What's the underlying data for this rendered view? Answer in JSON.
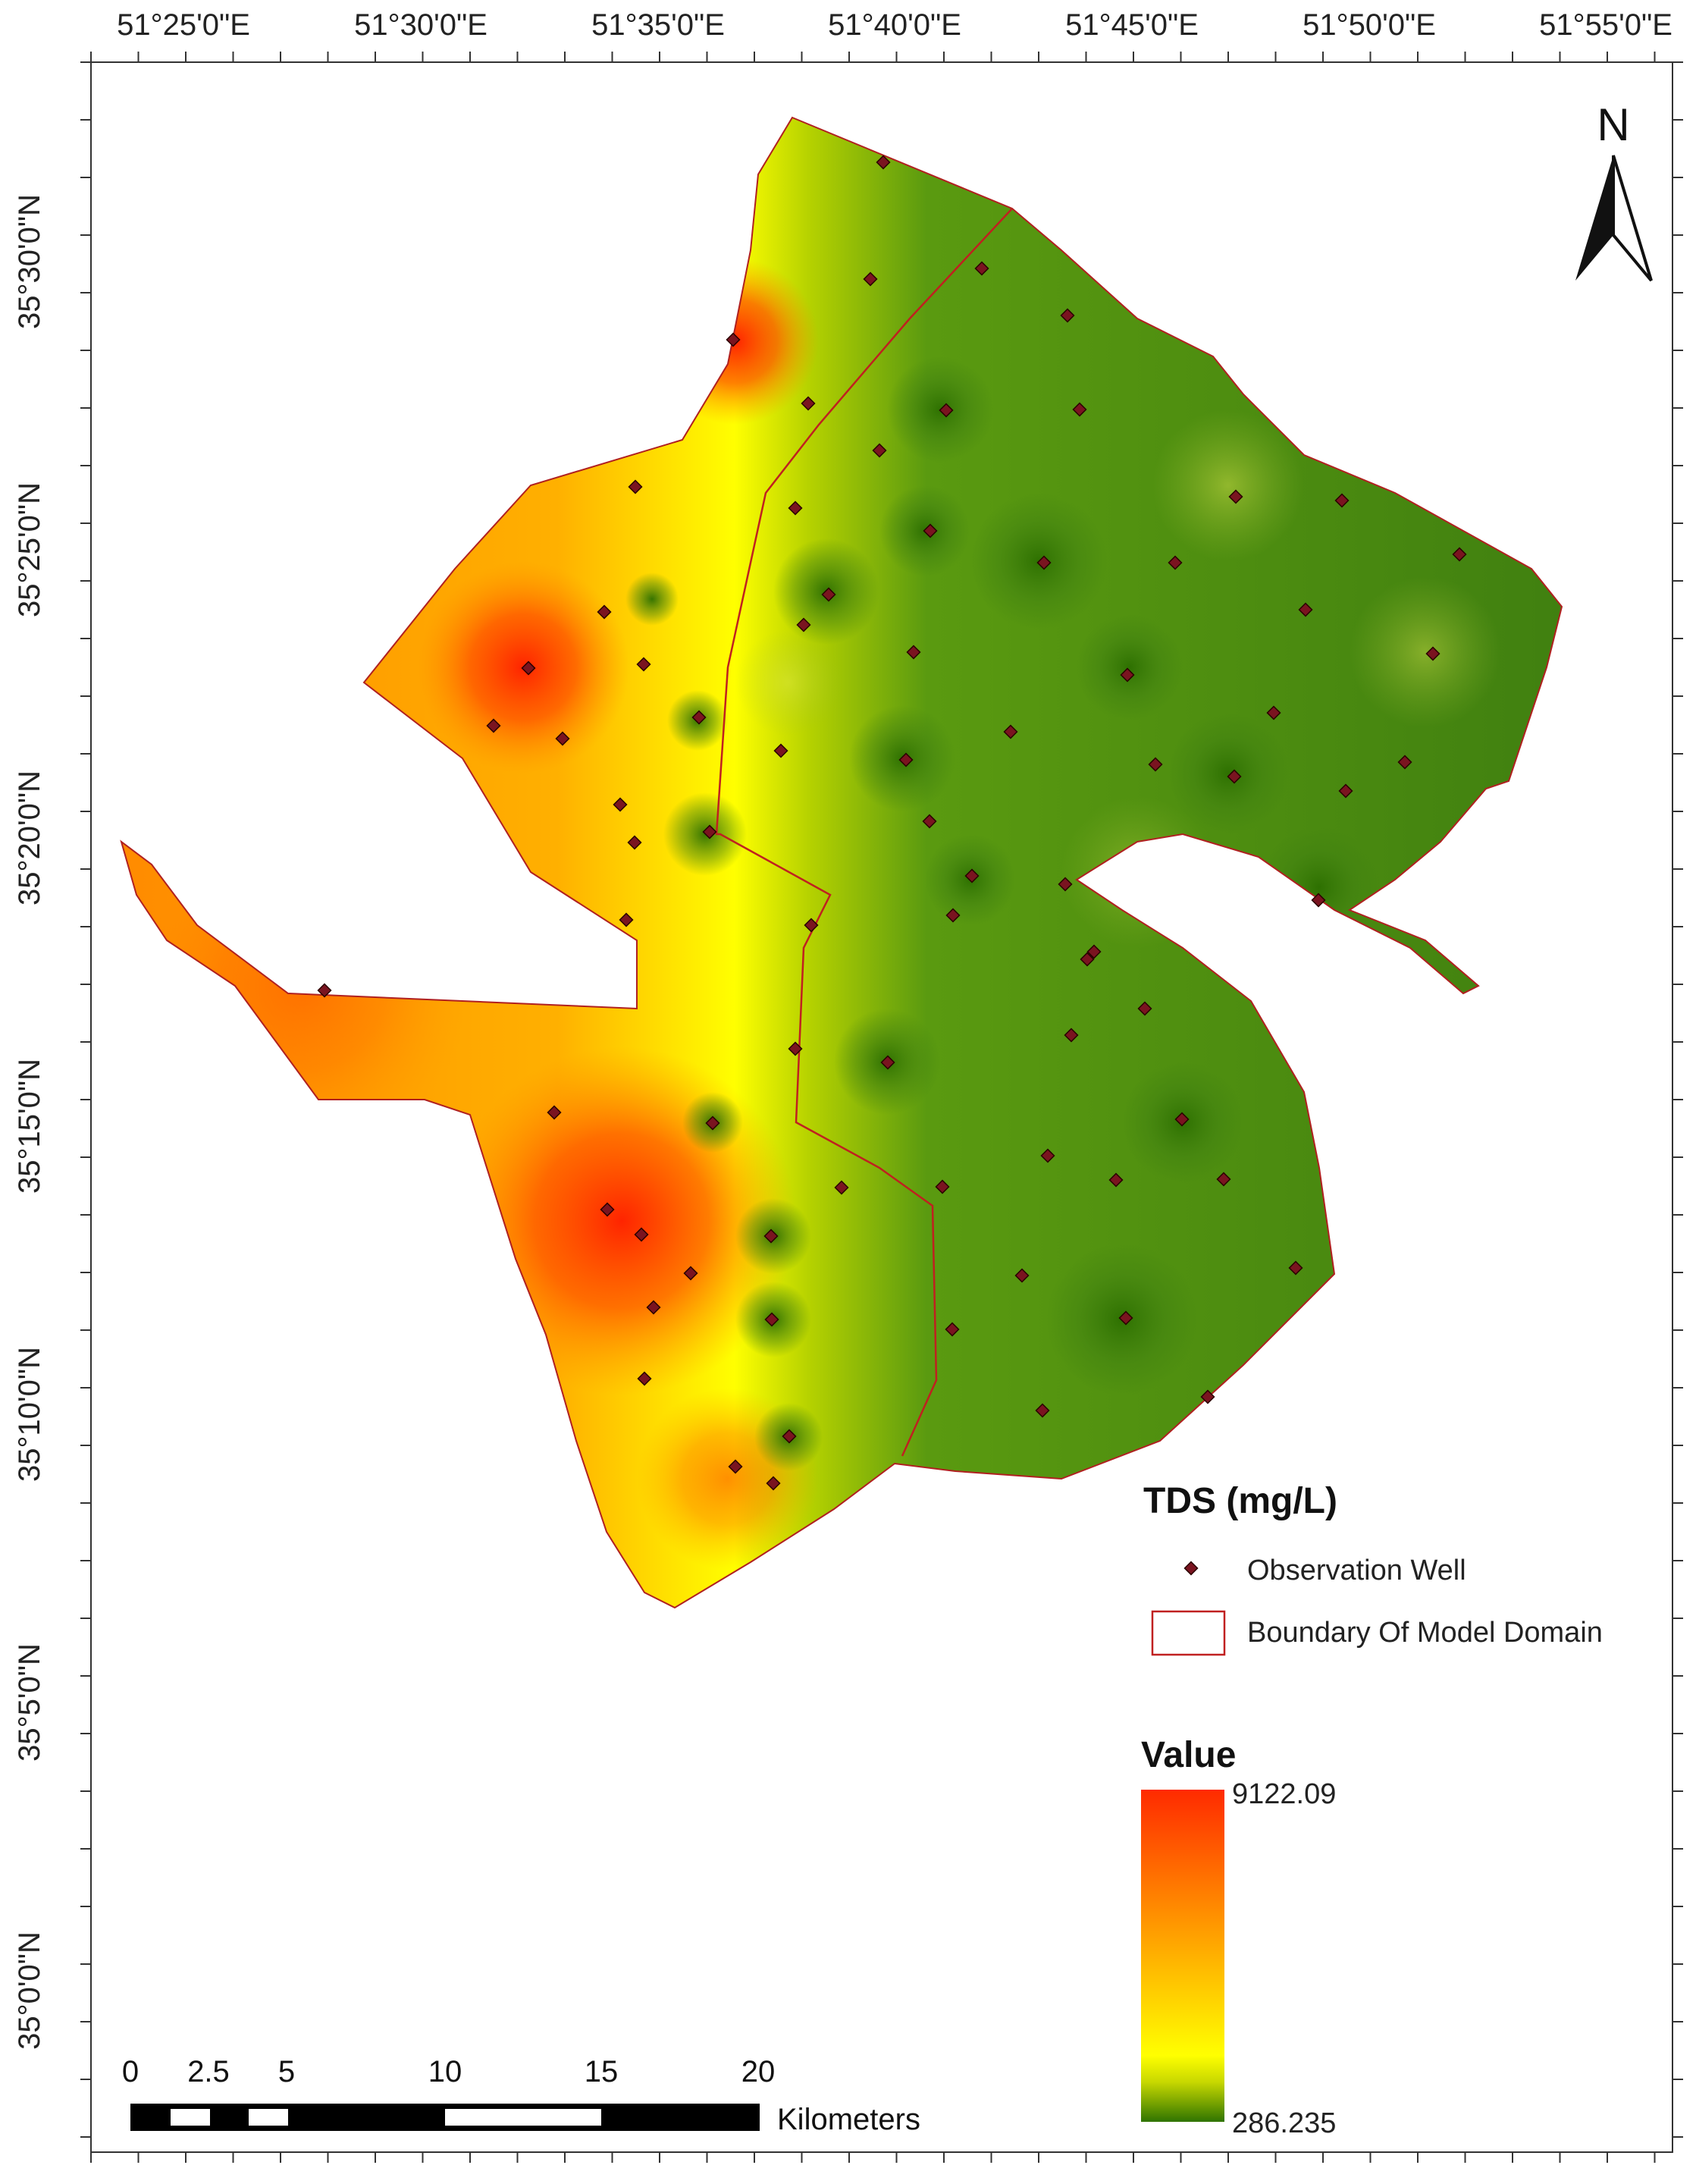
{
  "axes": {
    "top_labels": [
      "51°25'0\"E",
      "51°30'0\"E",
      "51°35'0\"E",
      "51°40'0\"E",
      "51°45'0\"E",
      "51°50'0\"E",
      "51°55'0\"E"
    ],
    "left_labels": [
      "35°30'0\"N",
      "35°25'0\"N",
      "35°20'0\"N",
      "35°15'0\"N",
      "35°10'0\"N",
      "35°5'0\"N",
      "35°0'0\"N"
    ]
  },
  "legend": {
    "title": "TDS (mg/L)",
    "well_label": "Observation Well",
    "boundary_label": "Boundary Of Model Domain",
    "value_title": "Value",
    "max_value": "9122.09",
    "min_value": "286.235",
    "colors": {
      "high": "#ff2a00",
      "mid_high": "#ff8c00",
      "mid": "#ffff00",
      "low": "#2f7a00",
      "well": "#7a1420",
      "boundary": "#c02020"
    }
  },
  "north_arrow": {
    "label": "N"
  },
  "scale_bar": {
    "ticks": [
      "0",
      "2.5",
      "5",
      "10",
      "15",
      "20"
    ],
    "unit": "Kilometers"
  }
}
